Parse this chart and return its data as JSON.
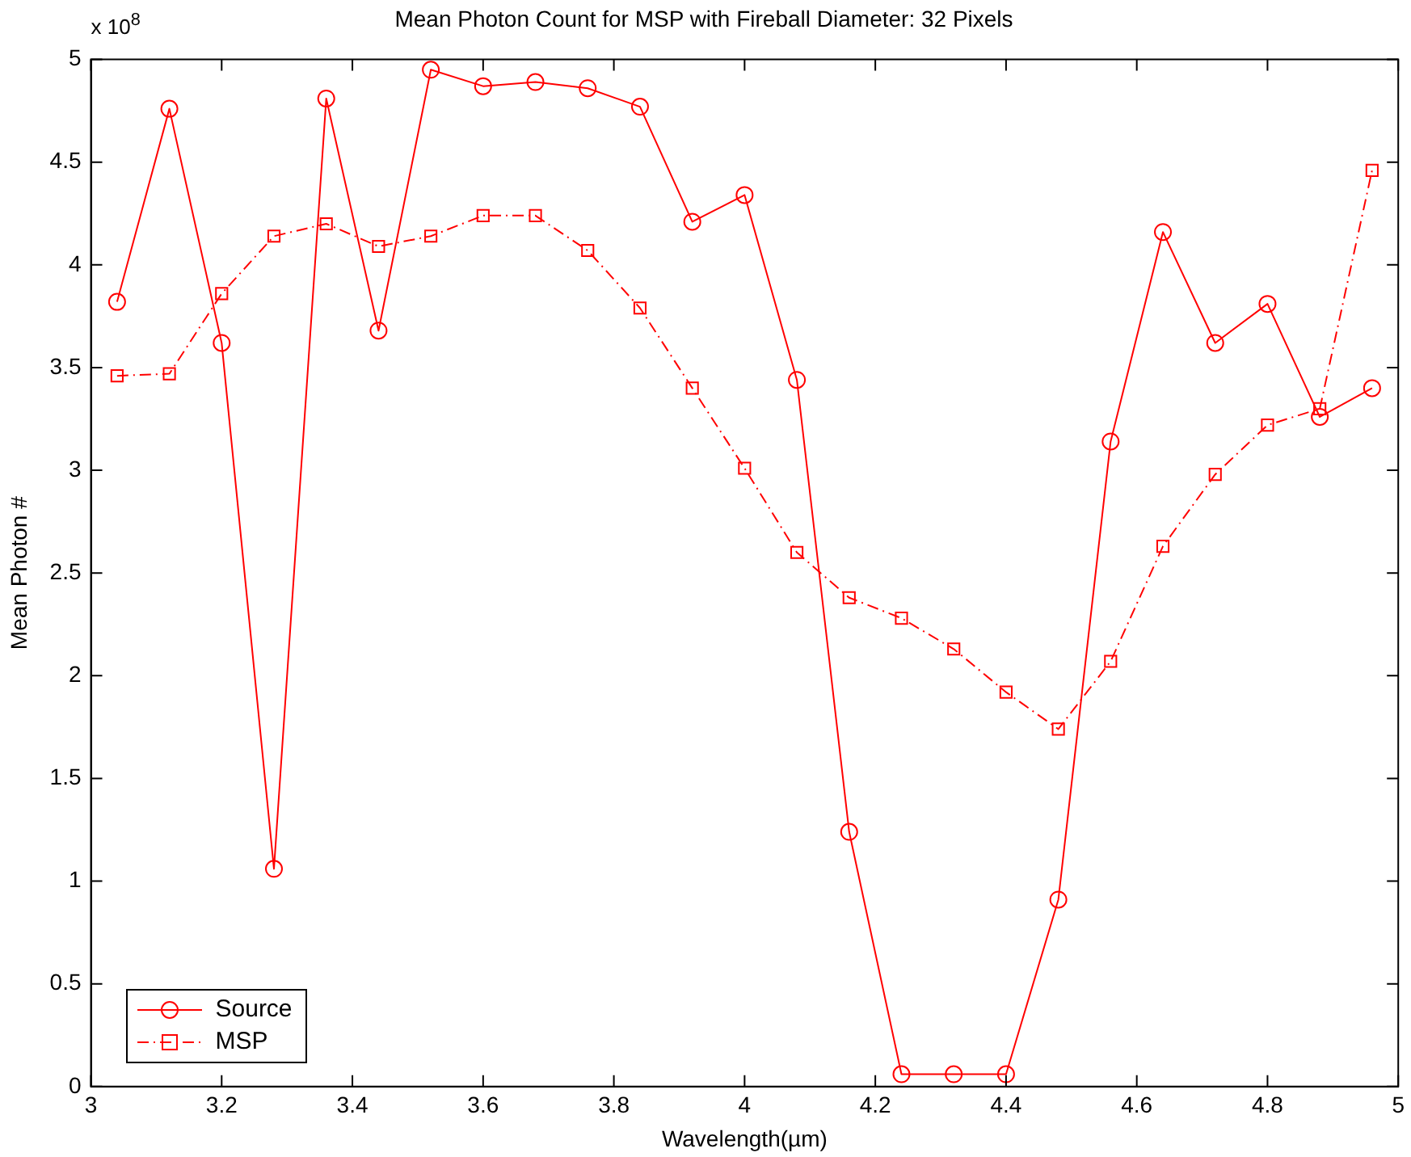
{
  "chart_data": {
    "type": "line",
    "title": "Mean Photon Count for MSP with Fireball Diameter: 32 Pixels",
    "xlabel": "Wavelength(µm)",
    "ylabel": "Mean Photon #",
    "annotations": [
      "x 10$^{8}$"
    ],
    "x": [
      3.04,
      3.12,
      3.2,
      3.28,
      3.36,
      3.44,
      3.52,
      3.6,
      3.68,
      3.76,
      3.84,
      3.92,
      4.0,
      4.08,
      4.16,
      4.24,
      4.32,
      4.4,
      4.48,
      4.56,
      4.64,
      4.72,
      4.8,
      4.88,
      4.96
    ],
    "series": [
      {
        "name": "Source",
        "color": "#ff0000",
        "marker": "circle",
        "line_style": "solid",
        "values": [
          3.82,
          4.76,
          3.62,
          1.06,
          4.81,
          3.68,
          4.95,
          4.87,
          4.89,
          4.86,
          4.77,
          4.21,
          4.34,
          3.44,
          1.24,
          0.06,
          0.06,
          0.06,
          0.91,
          3.14,
          4.16,
          3.62,
          3.81,
          3.26,
          3.4
        ]
      },
      {
        "name": "MSP",
        "color": "#ff0000",
        "marker": "square",
        "line_style": "dashed",
        "values": [
          3.46,
          3.47,
          3.86,
          4.14,
          4.2,
          4.09,
          4.14,
          4.24,
          4.24,
          4.07,
          3.79,
          3.4,
          3.01,
          2.6,
          2.38,
          2.28,
          2.13,
          1.92,
          1.74,
          2.07,
          2.63,
          2.98,
          3.22,
          3.3,
          4.46
        ]
      }
    ],
    "xlim": [
      3,
      5
    ],
    "xticks": [
      3,
      3.2,
      3.4,
      3.6,
      3.8,
      4,
      4.2,
      4.4,
      4.6,
      4.8,
      5
    ],
    "ylim": [
      0,
      5
    ],
    "yticks": [
      0,
      0.5,
      1,
      1.5,
      2,
      2.5,
      3,
      3.5,
      4,
      4.5,
      5
    ],
    "grid": false,
    "legend": "bottom left"
  }
}
